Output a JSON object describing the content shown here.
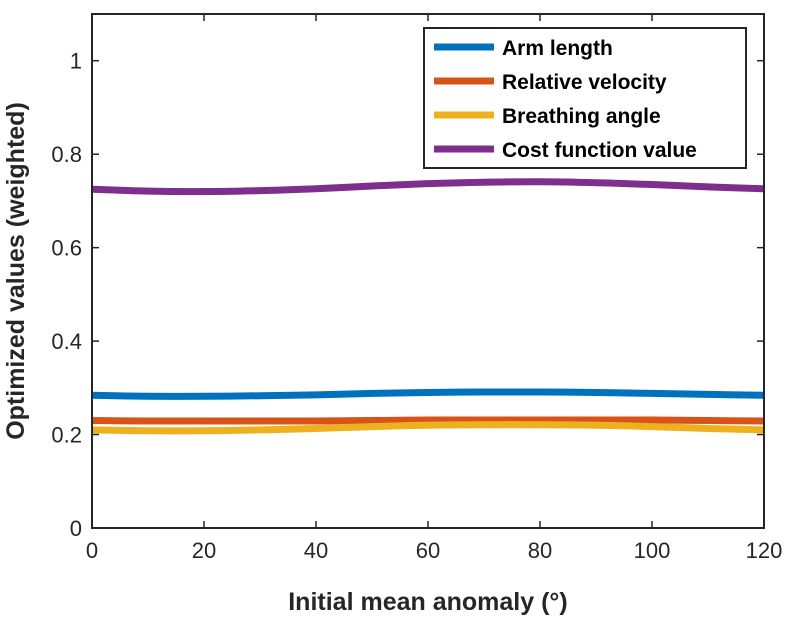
{
  "chart_data": {
    "type": "line",
    "title": "",
    "xlabel": "Initial mean anomaly (°)",
    "ylabel": "Optimized values (weighted)",
    "xlim": [
      0,
      120
    ],
    "ylim": [
      0,
      1.1
    ],
    "xticks": [
      0,
      20,
      40,
      60,
      80,
      100,
      120
    ],
    "yticks": [
      0,
      0.2,
      0.4,
      0.6,
      0.8,
      1
    ],
    "ytick_labels": [
      "0",
      "0.2",
      "0.4",
      "0.6",
      "0.8",
      "1"
    ],
    "grid": false,
    "legend_position": "top-right",
    "x": [
      0,
      10,
      20,
      30,
      40,
      50,
      60,
      70,
      80,
      90,
      100,
      110,
      120
    ],
    "series": [
      {
        "name": "Arm length",
        "color": "#0072BD",
        "values": [
          0.284,
          0.282,
          0.282,
          0.283,
          0.285,
          0.288,
          0.29,
          0.291,
          0.291,
          0.29,
          0.288,
          0.286,
          0.284
        ]
      },
      {
        "name": "Relative velocity",
        "color": "#D95319",
        "values": [
          0.23,
          0.229,
          0.229,
          0.229,
          0.229,
          0.23,
          0.231,
          0.231,
          0.231,
          0.231,
          0.231,
          0.23,
          0.229
        ]
      },
      {
        "name": "Breathing angle",
        "color": "#EDB120",
        "values": [
          0.21,
          0.208,
          0.208,
          0.21,
          0.213,
          0.217,
          0.22,
          0.221,
          0.221,
          0.22,
          0.217,
          0.213,
          0.21
        ]
      },
      {
        "name": "Cost function value",
        "color": "#7E2F8E",
        "values": [
          0.725,
          0.721,
          0.72,
          0.722,
          0.726,
          0.732,
          0.737,
          0.74,
          0.741,
          0.739,
          0.735,
          0.73,
          0.726
        ]
      }
    ]
  }
}
